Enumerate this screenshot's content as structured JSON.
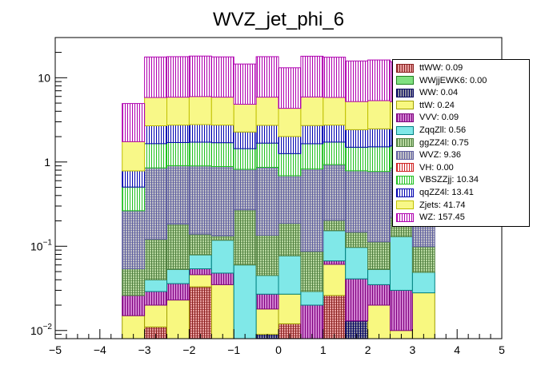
{
  "chart_data": {
    "type": "bar",
    "stacked": true,
    "title": "WVZ_jet_phi_6",
    "xlabel": "",
    "ylabel": "",
    "yscale": "log",
    "xlim": [
      -5,
      5
    ],
    "ylim": [
      0.008,
      30
    ],
    "x_ticks": [
      "−5",
      "−4",
      "−3",
      "−2",
      "−1",
      "0",
      "1",
      "2",
      "3",
      "4",
      "5"
    ],
    "y_ticks": [
      {
        "value": 0.01,
        "base": "10",
        "exp": "−2"
      },
      {
        "value": 0.1,
        "base": "10",
        "exp": "−1"
      },
      {
        "value": 1,
        "base": "1",
        "exp": ""
      },
      {
        "value": 10,
        "base": "10",
        "exp": ""
      }
    ],
    "bin_edges": [
      -3.5,
      -3.0,
      -2.5,
      -2.0,
      -1.5,
      -1.0,
      -0.5,
      0.0,
      0.5,
      1.0,
      1.5,
      2.0,
      2.5,
      3.0,
      3.5
    ],
    "series": [
      {
        "name": "ttWW",
        "label": "ttWW: 0.09",
        "fill": "#e8a0a0",
        "stroke": "#8b2020",
        "pattern": "cross",
        "values": [
          0,
          0.011,
          0,
          0.033,
          0,
          0,
          0,
          0.012,
          0,
          0.026,
          0,
          0,
          0,
          0
        ]
      },
      {
        "name": "WWjjEWK6",
        "label": "WWjjEWK6: 0.00",
        "fill": "#80e080",
        "stroke": "#208020",
        "pattern": "solid",
        "values": [
          0,
          0,
          0,
          0,
          0,
          0,
          0,
          0,
          0,
          0,
          0,
          0,
          0,
          0
        ]
      },
      {
        "name": "WW",
        "label": "WW: 0.04",
        "fill": "#9090a0",
        "stroke": "#000060",
        "pattern": "cross",
        "values": [
          0,
          0,
          0,
          0,
          0,
          0,
          0.009,
          0,
          0,
          0,
          0.013,
          0,
          0,
          0.007
        ]
      },
      {
        "name": "ttW",
        "label": "ttW: 0.24",
        "fill": "#f8f880",
        "stroke": "#a0a000",
        "pattern": "solid",
        "values": [
          0.015,
          0.009,
          0.023,
          0.013,
          0.035,
          0,
          0.009,
          0.015,
          0.007,
          0.035,
          0,
          0.02,
          0.01,
          0.021
        ]
      },
      {
        "name": "VVV",
        "label": "VVV: 0.09",
        "fill": "#d080d0",
        "stroke": "#800080",
        "pattern": "hatch",
        "values": [
          0.011,
          0.009,
          0.013,
          0.008,
          0.013,
          0,
          0.009,
          0,
          0.013,
          0.006,
          0.028,
          0.015,
          0.02,
          0
        ]
      },
      {
        "name": "ZqqZll",
        "label": "ZqqZll: 0.56",
        "fill": "#80e8e8",
        "stroke": "#008080",
        "pattern": "solid",
        "values": [
          0,
          0.011,
          0.017,
          0.025,
          0.07,
          0.06,
          0.018,
          0.05,
          0.009,
          0.086,
          0.056,
          0.018,
          0.1,
          0.021
        ]
      },
      {
        "name": "ggZZ4l",
        "label": "ggZZ4l: 0.75",
        "fill": "#b8d8a0",
        "stroke": "#508040",
        "pattern": "cross",
        "values": [
          0.028,
          0.081,
          0.13,
          0.06,
          0.015,
          0.21,
          0.09,
          0.11,
          0.058,
          0.05,
          0.05,
          0.06,
          0.09,
          0.05
        ]
      },
      {
        "name": "WVZ",
        "label": "WVZ: 9.36",
        "fill": "#c0c0c8",
        "stroke": "#6060a0",
        "pattern": "cross",
        "values": [
          0.21,
          0.73,
          0.72,
          0.76,
          0.75,
          0.55,
          0.73,
          0.5,
          0.74,
          0.73,
          0.64,
          0.66,
          0.63,
          0.43
        ]
      },
      {
        "name": "VH",
        "label": "VH: 0.00",
        "fill": "#ffffff",
        "stroke": "#d02020",
        "pattern": "vlines",
        "values": [
          0,
          0,
          0,
          0,
          0,
          0,
          0,
          0,
          0,
          0,
          0,
          0,
          0,
          0
        ]
      },
      {
        "name": "VBSZZjj",
        "label": "VBSZZjj: 10.34",
        "fill": "#ffffff",
        "stroke": "#20c020",
        "pattern": "vlines",
        "values": [
          0.24,
          0.8,
          0.8,
          0.82,
          0.81,
          0.62,
          0.81,
          0.57,
          0.82,
          0.79,
          0.71,
          0.74,
          0.7,
          0.5
        ]
      },
      {
        "name": "qqZZ4l",
        "label": "qqZZ4l: 13.41",
        "fill": "#ffffff",
        "stroke": "#0000b0",
        "pattern": "vlines",
        "values": [
          0.28,
          1.04,
          1.04,
          1.06,
          1.05,
          0.83,
          1.05,
          0.75,
          1.06,
          1.02,
          0.92,
          0.96,
          0.91,
          0.66
        ]
      },
      {
        "name": "Zjets",
        "label": "Zjets: 41.74",
        "fill": "#f8f888",
        "stroke": "#c0c000",
        "pattern": "solid",
        "values": [
          0.96,
          3.14,
          3.14,
          3.2,
          3.14,
          2.58,
          3.16,
          2.33,
          3.2,
          3.1,
          2.8,
          2.88,
          2.74,
          2.05
        ]
      },
      {
        "name": "WZ",
        "label": "WZ: 157.45",
        "fill": "#ffffff",
        "stroke": "#b000b0",
        "pattern": "vlines",
        "values": [
          3.2,
          11.8,
          11.9,
          12.1,
          11.8,
          9.7,
          11.9,
          8.8,
          12.1,
          11.7,
          10.6,
          10.9,
          10.3,
          7.7
        ]
      }
    ]
  }
}
